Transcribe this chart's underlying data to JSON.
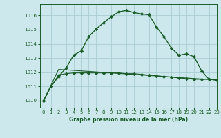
{
  "title": "Graphe pression niveau de la mer (hPa)",
  "background_color": "#cce8ec",
  "grid_color": "#aaccd4",
  "line_color": "#1a5c28",
  "xlim": [
    -0.5,
    23
  ],
  "ylim": [
    1009.5,
    1016.8
  ],
  "yticks": [
    1010,
    1011,
    1012,
    1013,
    1014,
    1015,
    1016
  ],
  "xticks": [
    0,
    1,
    2,
    3,
    4,
    5,
    6,
    7,
    8,
    9,
    10,
    11,
    12,
    13,
    14,
    15,
    16,
    17,
    18,
    19,
    20,
    21,
    22,
    23
  ],
  "series1_x": [
    0,
    1,
    2,
    3,
    4,
    5,
    6,
    7,
    8,
    9,
    10,
    11,
    12,
    13,
    14,
    15,
    16,
    17,
    18,
    19,
    20,
    21,
    22,
    23
  ],
  "series1_y": [
    1010.0,
    1011.0,
    1011.7,
    1012.3,
    1013.2,
    1013.5,
    1014.5,
    1015.05,
    1015.5,
    1015.9,
    1016.25,
    1016.35,
    1016.2,
    1016.1,
    1016.05,
    1015.2,
    1014.5,
    1013.7,
    1013.2,
    1013.3,
    1013.1,
    1012.1,
    1011.5,
    1011.45
  ],
  "series2_x": [
    0,
    1,
    2,
    3,
    4,
    5,
    6,
    7,
    8,
    9,
    10,
    11,
    12,
    13,
    14,
    15,
    16,
    17,
    18,
    19,
    20,
    21,
    22,
    23
  ],
  "series2_y": [
    1010.0,
    1011.0,
    1011.8,
    1011.9,
    1011.95,
    1011.95,
    1011.95,
    1011.95,
    1011.95,
    1011.95,
    1011.95,
    1011.9,
    1011.9,
    1011.85,
    1011.8,
    1011.75,
    1011.7,
    1011.65,
    1011.6,
    1011.55,
    1011.5,
    1011.5,
    1011.5,
    1011.45
  ],
  "series3_x": [
    0,
    2,
    23
  ],
  "series3_y": [
    1010.0,
    1012.2,
    1011.45
  ],
  "marker": "D",
  "markersize": 2.2,
  "linewidth_main": 1.0,
  "linewidth_thin": 0.8,
  "ylabel_fontsize": 5.5,
  "xlabel_fontsize": 5.5,
  "tick_fontsize": 5.0
}
